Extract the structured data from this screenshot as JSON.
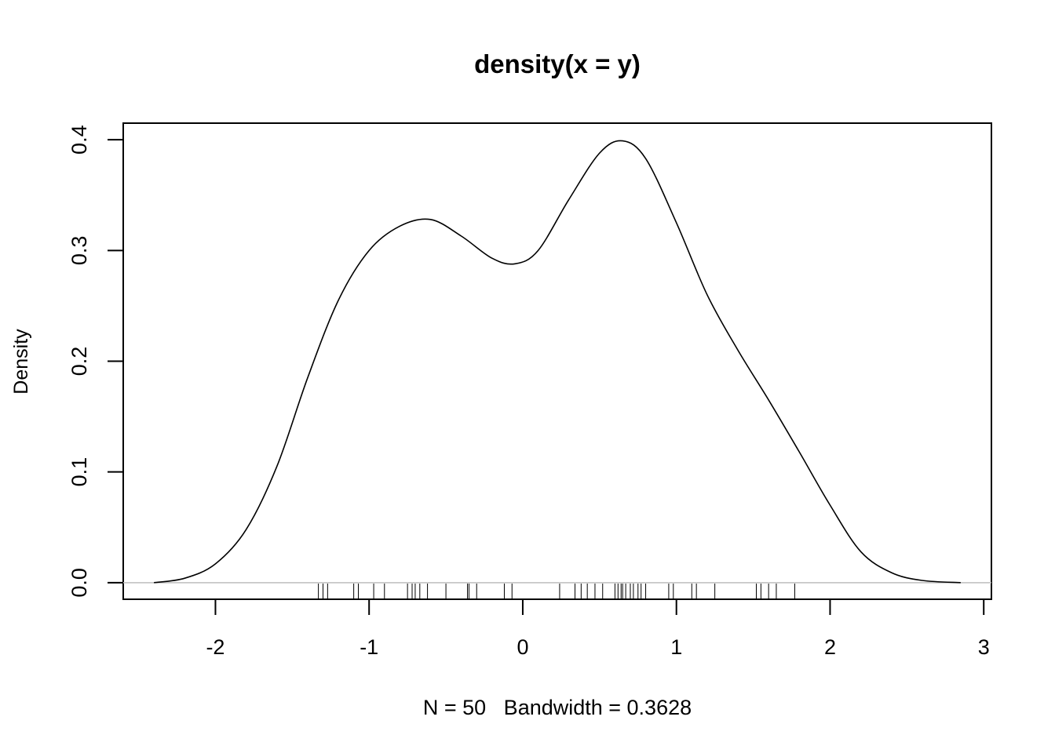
{
  "chart_data": {
    "type": "line",
    "title": "density(x = y)",
    "xlabel": "N = 50   Bandwidth = 0.3628",
    "ylabel": "Density",
    "xlim": [
      -2.6,
      3.05
    ],
    "ylim": [
      -0.015,
      0.415
    ],
    "x_ticks": [
      -2,
      -1,
      0,
      1,
      2,
      3
    ],
    "x_tick_labels": [
      "-2",
      "-1",
      "0",
      "1",
      "2",
      "3"
    ],
    "y_ticks": [
      0.0,
      0.1,
      0.2,
      0.3,
      0.4
    ],
    "y_tick_labels": [
      "0.0",
      "0.1",
      "0.2",
      "0.3",
      "0.4"
    ],
    "grid": false,
    "baseline": 0,
    "series": [
      {
        "x": [
          -2.4,
          -2.2,
          -2.0,
          -1.8,
          -1.6,
          -1.4,
          -1.2,
          -1.0,
          -0.8,
          -0.6,
          -0.4,
          -0.2,
          -0.05,
          0.1,
          0.3,
          0.5,
          0.65,
          0.8,
          1.0,
          1.2,
          1.4,
          1.6,
          1.8,
          2.0,
          2.2,
          2.4,
          2.6,
          2.85
        ],
        "y": [
          0.0,
          0.004,
          0.017,
          0.048,
          0.105,
          0.185,
          0.255,
          0.3,
          0.322,
          0.328,
          0.313,
          0.293,
          0.288,
          0.3,
          0.346,
          0.388,
          0.399,
          0.383,
          0.325,
          0.26,
          0.21,
          0.165,
          0.118,
          0.07,
          0.028,
          0.009,
          0.002,
          0.0
        ],
        "color": "#000000"
      }
    ],
    "rug": [
      -1.33,
      -1.3,
      -1.27,
      -1.1,
      -1.07,
      -0.97,
      -0.9,
      -0.75,
      -0.72,
      -0.7,
      -0.67,
      -0.62,
      -0.5,
      -0.36,
      -0.35,
      -0.3,
      -0.12,
      -0.07,
      0.24,
      0.34,
      0.38,
      0.42,
      0.47,
      0.52,
      0.6,
      0.62,
      0.64,
      0.65,
      0.67,
      0.7,
      0.72,
      0.75,
      0.77,
      0.8,
      0.95,
      0.98,
      1.1,
      1.13,
      1.25,
      1.52,
      1.55,
      1.6,
      1.65,
      1.77
    ],
    "colors": {
      "line": "#000000",
      "baseline": "#bebebe",
      "frame": "#000000"
    }
  }
}
